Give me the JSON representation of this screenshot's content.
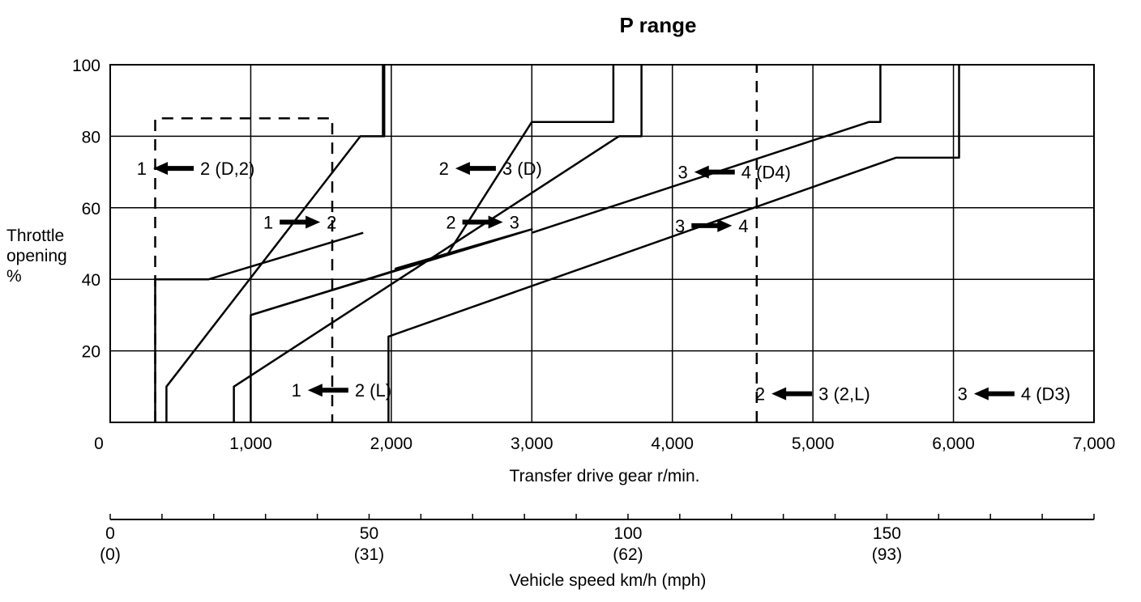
{
  "chart_data": {
    "type": "line",
    "title": "P range",
    "xlabel": "Transfer drive gear r/min.",
    "ylabel": [
      "Throttle",
      "opening",
      "%"
    ],
    "xlim": [
      0,
      7000
    ],
    "ylim": [
      0,
      100
    ],
    "x_ticks": [
      {
        "value": 0,
        "label": "0"
      },
      {
        "value": 1000,
        "label": "1,000"
      },
      {
        "value": 2000,
        "label": "2,000"
      },
      {
        "value": 3000,
        "label": "3,000"
      },
      {
        "value": 4000,
        "label": "4,000"
      },
      {
        "value": 5000,
        "label": "5,000"
      },
      {
        "value": 6000,
        "label": "6,000"
      },
      {
        "value": 7000,
        "label": "7,000"
      }
    ],
    "y_ticks": [
      {
        "value": 20,
        "label": "20"
      },
      {
        "value": 40,
        "label": "40"
      },
      {
        "value": 60,
        "label": "60"
      },
      {
        "value": 80,
        "label": "80"
      },
      {
        "value": 100,
        "label": "100"
      }
    ],
    "grid": true,
    "series": [
      {
        "style": "solid",
        "points": [
          [
            320,
            0
          ],
          [
            320,
            40
          ],
          [
            700,
            40
          ],
          [
            1800,
            53
          ],
          [
            1800,
            53
          ]
        ]
      },
      {
        "style": "solid",
        "points": [
          [
            400,
            0
          ],
          [
            400,
            10
          ],
          [
            1780,
            80
          ],
          [
            1950,
            80
          ],
          [
            1950,
            100
          ]
        ]
      },
      {
        "style": "solid",
        "points": [
          [
            1000,
            0
          ],
          [
            1000,
            30
          ],
          [
            3000,
            54
          ],
          [
            2030,
            43
          ],
          [
            3000,
            54
          ]
        ]
      },
      {
        "style": "solid",
        "points": [
          [
            880,
            0
          ],
          [
            880,
            10
          ],
          [
            3620,
            80
          ],
          [
            3780,
            80
          ],
          [
            3780,
            100
          ]
        ]
      },
      {
        "style": "solid",
        "points": [
          [
            1000,
            30
          ],
          [
            2400,
            47
          ],
          [
            3000,
            84
          ],
          [
            3580,
            84
          ],
          [
            3580,
            100
          ]
        ]
      },
      {
        "style": "solid",
        "points": [
          [
            1980,
            0
          ],
          [
            1980,
            24
          ],
          [
            5590,
            74
          ],
          [
            6040,
            74
          ],
          [
            6040,
            100
          ]
        ]
      },
      {
        "style": "solid",
        "points": [
          [
            3000,
            53
          ],
          [
            5400,
            84
          ],
          [
            5480,
            84
          ],
          [
            5480,
            100
          ]
        ]
      },
      {
        "style": "solid",
        "points": [
          [
            1940,
            80
          ],
          [
            1940,
            100
          ]
        ]
      },
      {
        "style": "dashed",
        "points": [
          [
            320,
            0
          ],
          [
            320,
            85
          ],
          [
            1580,
            85
          ],
          [
            1580,
            0
          ]
        ]
      },
      {
        "style": "dashed",
        "points": [
          [
            4600,
            0
          ],
          [
            4600,
            100
          ]
        ]
      }
    ],
    "annotations": [
      {
        "from": "1",
        "to": "2 (D,2)",
        "direction": "left",
        "x": 450,
        "y": 71
      },
      {
        "from": "1",
        "to": "2",
        "direction": "right",
        "x": 1350,
        "y": 56
      },
      {
        "from": "2",
        "to": "3 (D)",
        "direction": "left",
        "x": 2600,
        "y": 71
      },
      {
        "from": "2",
        "to": "3",
        "direction": "right",
        "x": 2650,
        "y": 56
      },
      {
        "from": "3",
        "to": "4 (D4)",
        "direction": "left",
        "x": 4300,
        "y": 70
      },
      {
        "from": "3",
        "to": "4",
        "direction": "right",
        "x": 4280,
        "y": 55
      },
      {
        "from": "1",
        "to": "2 (L)",
        "direction": "left",
        "x": 1550,
        "y": 9
      },
      {
        "from": "2",
        "to": "3 (2,L)",
        "direction": "left",
        "x": 4850,
        "y": 8
      },
      {
        "from": "3",
        "to": "4 (D3)",
        "direction": "left",
        "x": 6290,
        "y": 8
      }
    ],
    "secondary_axis": {
      "label": "Vehicle speed km/h (mph)",
      "ticks": [
        {
          "value": 0,
          "kmh": "0",
          "mph": "(0)"
        },
        {
          "value": 50,
          "kmh": "50",
          "mph": "(31)"
        },
        {
          "value": 100,
          "kmh": "100",
          "mph": "(62)"
        },
        {
          "value": 150,
          "kmh": "150",
          "mph": "(93)"
        }
      ],
      "range_kmh": [
        0,
        190
      ]
    }
  }
}
